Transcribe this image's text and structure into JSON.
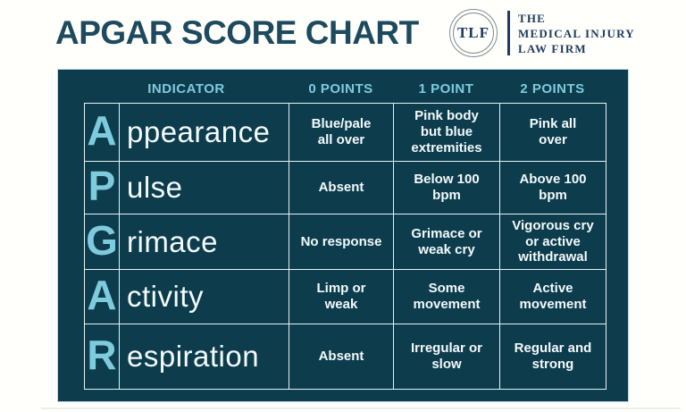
{
  "title": "APGAR SCORE CHART",
  "logo": {
    "monogram": "TLF",
    "line1": "THE",
    "line2": "MEDICAL INJURY",
    "line3": "LAW FIRM"
  },
  "chart_data": {
    "type": "table",
    "title": "APGAR SCORE CHART",
    "columns": [
      "INDICATOR",
      "0 POINTS",
      "1 POINT",
      "2 POINTS"
    ],
    "rows": [
      {
        "letter": "A",
        "rest": "ppearance",
        "indicator": "Appearance",
        "points_0": "Blue/pale\nall over",
        "points_1": "Pink body\nbut blue\nextremities",
        "points_2": "Pink all\nover"
      },
      {
        "letter": "P",
        "rest": "ulse",
        "indicator": "Pulse",
        "points_0": "Absent",
        "points_1": "Below 100\nbpm",
        "points_2": "Above 100\nbpm"
      },
      {
        "letter": "G",
        "rest": "rimace",
        "indicator": "Grimace",
        "points_0": "No response",
        "points_1": "Grimace or\nweak cry",
        "points_2": "Vigorous cry\nor active\nwithdrawal"
      },
      {
        "letter": "A",
        "rest": "ctivity",
        "indicator": "Activity",
        "points_0": "Limp or\nweak",
        "points_1": "Some\nmovement",
        "points_2": "Active\nmovement"
      },
      {
        "letter": "R",
        "rest": "espiration",
        "indicator": "Respiration",
        "points_0": "Absent",
        "points_1": "Irregular or\nslow",
        "points_2": "Regular and\nstrong"
      }
    ]
  },
  "colors": {
    "panel_background": "#0d3c4d",
    "accent_light_blue": "#7ecbdd",
    "title_teal": "#1d4a5e",
    "logo_navy": "#1f3c60",
    "gridline": "#e8f3f5",
    "page_background": "#fffffc"
  }
}
